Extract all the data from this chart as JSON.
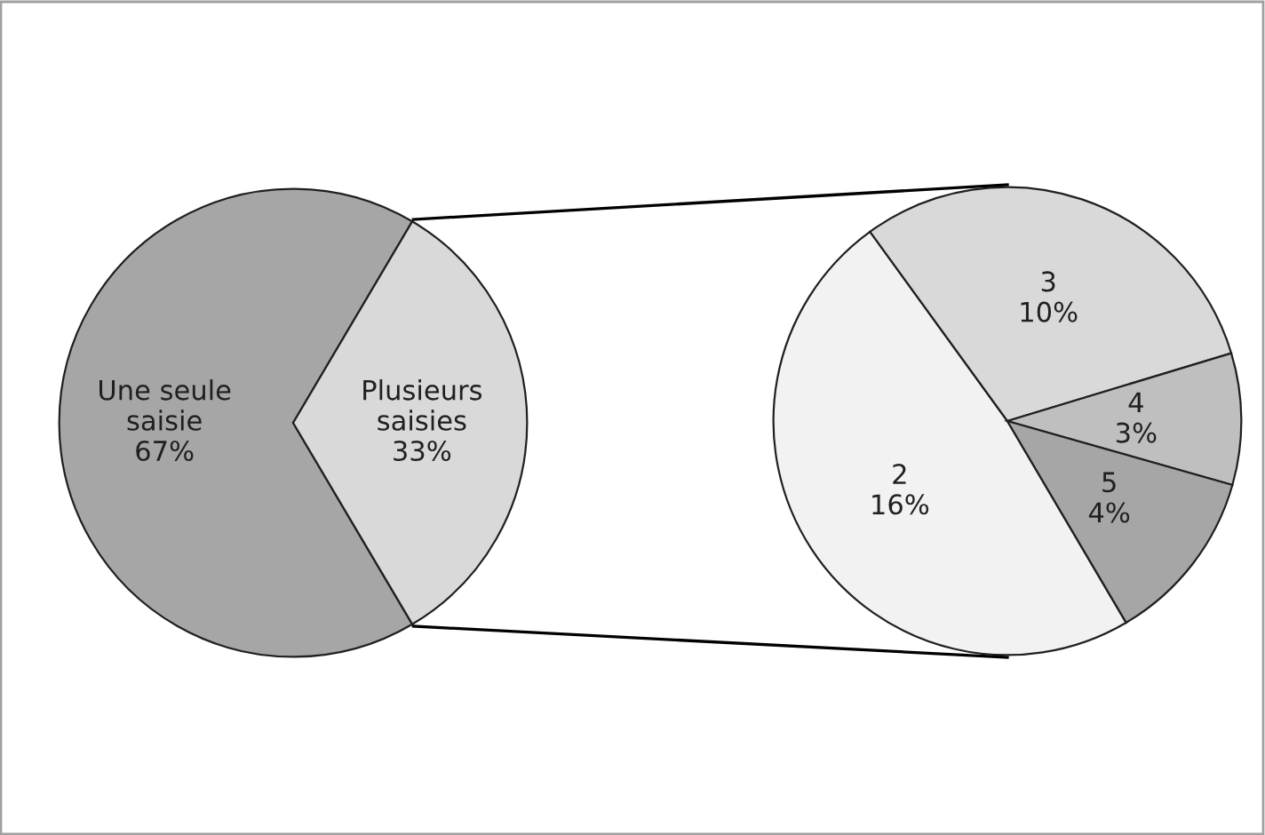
{
  "chart_data": [
    {
      "type": "pie",
      "categories": [
        "Une seule\nsaisie",
        "Plusieurs\nsaisies"
      ],
      "values": [
        67,
        33
      ],
      "value_labels": [
        "67%",
        "33%"
      ],
      "colors": [
        "#a6a6a6",
        "#d9d9d9"
      ]
    },
    {
      "type": "pie",
      "categories": [
        "2",
        "3",
        "4",
        "5"
      ],
      "values": [
        16,
        10,
        3,
        4
      ],
      "value_labels": [
        "16%",
        "10%",
        "3%",
        "4%"
      ],
      "colors": [
        "#f2f2f2",
        "#d9d9d9",
        "#bfbfbf",
        "#a6a6a6"
      ]
    }
  ]
}
